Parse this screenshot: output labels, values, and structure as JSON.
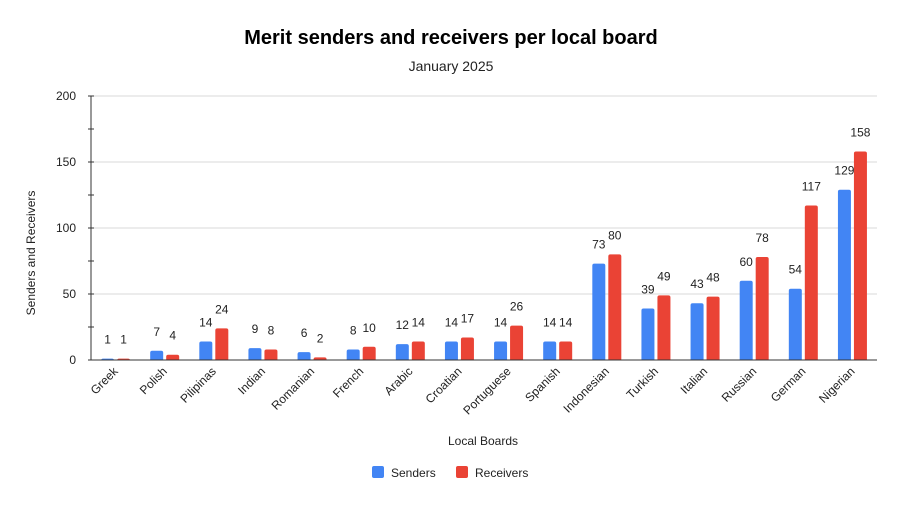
{
  "chart_data": {
    "type": "bar",
    "title": "Merit senders and receivers per local board",
    "subtitle": "January 2025",
    "xlabel": "Local Boards",
    "ylabel": "Senders and Receivers",
    "ylim": [
      0,
      200
    ],
    "yticks": [
      "0",
      "50",
      "100",
      "150",
      "200"
    ],
    "grid": true,
    "legend_position": "bottom",
    "categories": [
      "Greek",
      "Polish",
      "Pilipinas",
      "Indian",
      "Romanian",
      "French",
      "Arabic",
      "Croatian",
      "Portuguese",
      "Spanish",
      "Indonesian",
      "Turkish",
      "Italian",
      "Russian",
      "German",
      "Nigerian"
    ],
    "series": [
      {
        "name": "Senders",
        "color": "#4285f4",
        "values": [
          1,
          7,
          14,
          9,
          6,
          8,
          12,
          14,
          14,
          14,
          73,
          39,
          43,
          60,
          54,
          129
        ]
      },
      {
        "name": "Receivers",
        "color": "#ea4335",
        "values": [
          1,
          4,
          24,
          8,
          2,
          10,
          14,
          17,
          26,
          14,
          80,
          49,
          48,
          78,
          117,
          158
        ]
      }
    ]
  }
}
